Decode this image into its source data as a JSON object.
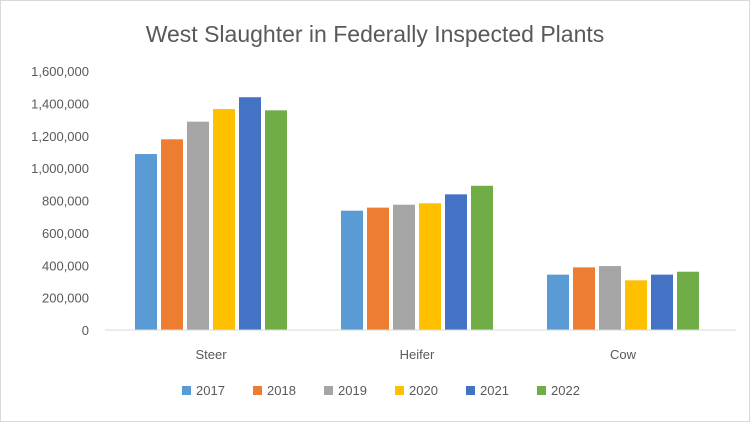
{
  "chart_data": {
    "type": "bar",
    "title": "West  Slaughter in Federally Inspected Plants",
    "categories": [
      "Steer",
      "Heifer",
      "Cow"
    ],
    "series": [
      {
        "name": "2017",
        "color": "#5B9BD5",
        "values": [
          1087000,
          737000,
          342000
        ]
      },
      {
        "name": "2018",
        "color": "#ED7D31",
        "values": [
          1178000,
          756000,
          387000
        ]
      },
      {
        "name": "2019",
        "color": "#A5A5A5",
        "values": [
          1287000,
          774000,
          395000
        ]
      },
      {
        "name": "2020",
        "color": "#FFC000",
        "values": [
          1365000,
          783000,
          307000
        ]
      },
      {
        "name": "2021",
        "color": "#4472C4",
        "values": [
          1438000,
          838000,
          342000
        ]
      },
      {
        "name": "2022",
        "color": "#70AD47",
        "values": [
          1357000,
          891000,
          360000
        ]
      }
    ],
    "yticks": [
      "0",
      "200,000",
      "400,000",
      "600,000",
      "800,000",
      "1,000,000",
      "1,200,000",
      "1,400,000",
      "1,600,000"
    ],
    "ylim": [
      0,
      1600000
    ],
    "xlabel": "",
    "ylabel": "",
    "grid": false,
    "legend": "bottom"
  }
}
